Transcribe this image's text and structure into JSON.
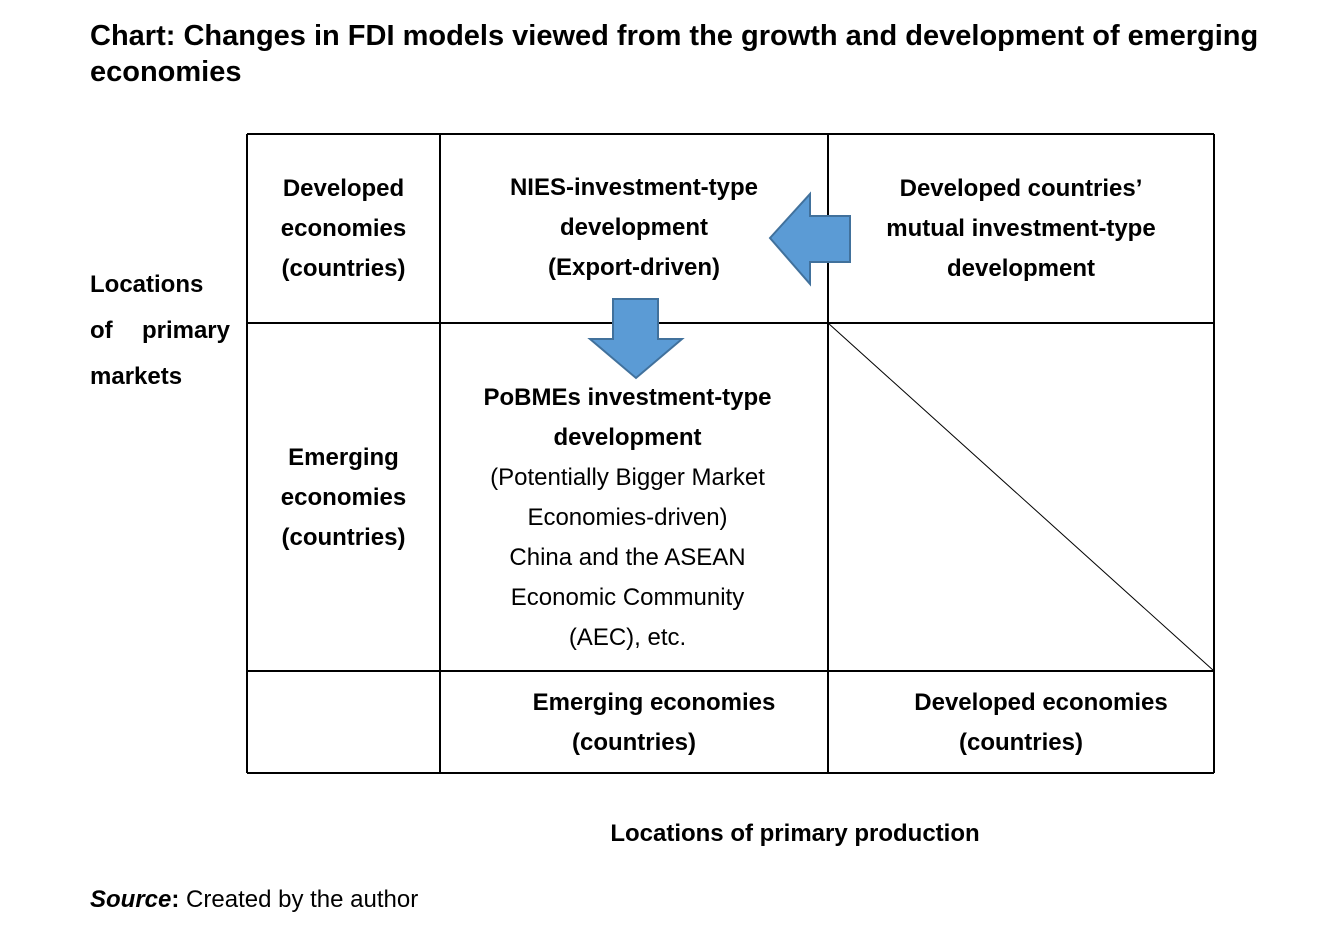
{
  "title": "Chart: Changes in FDI models viewed from the growth and development of emerging economies",
  "y_axis": {
    "line1": "Locations",
    "line2_a": "of",
    "line2_b": "primary",
    "line3": "markets"
  },
  "x_axis": {
    "label": "Locations of primary production"
  },
  "rows": {
    "developed": [
      "Developed",
      "economies",
      "(countries)"
    ],
    "emerging": [
      "Emerging",
      "economies",
      "(countries)"
    ]
  },
  "columns": {
    "emerging": [
      "Emerging economies",
      "(countries)"
    ],
    "developed": [
      "Developed economies",
      "(countries)"
    ]
  },
  "cells": {
    "nies": [
      "NIES-investment-type",
      "development",
      "(Export-driven)"
    ],
    "mutual": [
      "Developed countries’",
      "mutual investment-type",
      "development"
    ],
    "pobmes_bold": [
      "PoBMEs investment-type",
      "development"
    ],
    "pobmes_regular": [
      "(Potentially Bigger Market",
      "Economies-driven)",
      "China and the ASEAN",
      "Economic Community",
      "(AEC), etc."
    ]
  },
  "source": {
    "label": "Source",
    "text": "Created by the author"
  },
  "colors": {
    "arrow_fill": "#5b9bd5",
    "arrow_stroke": "#41719c"
  }
}
